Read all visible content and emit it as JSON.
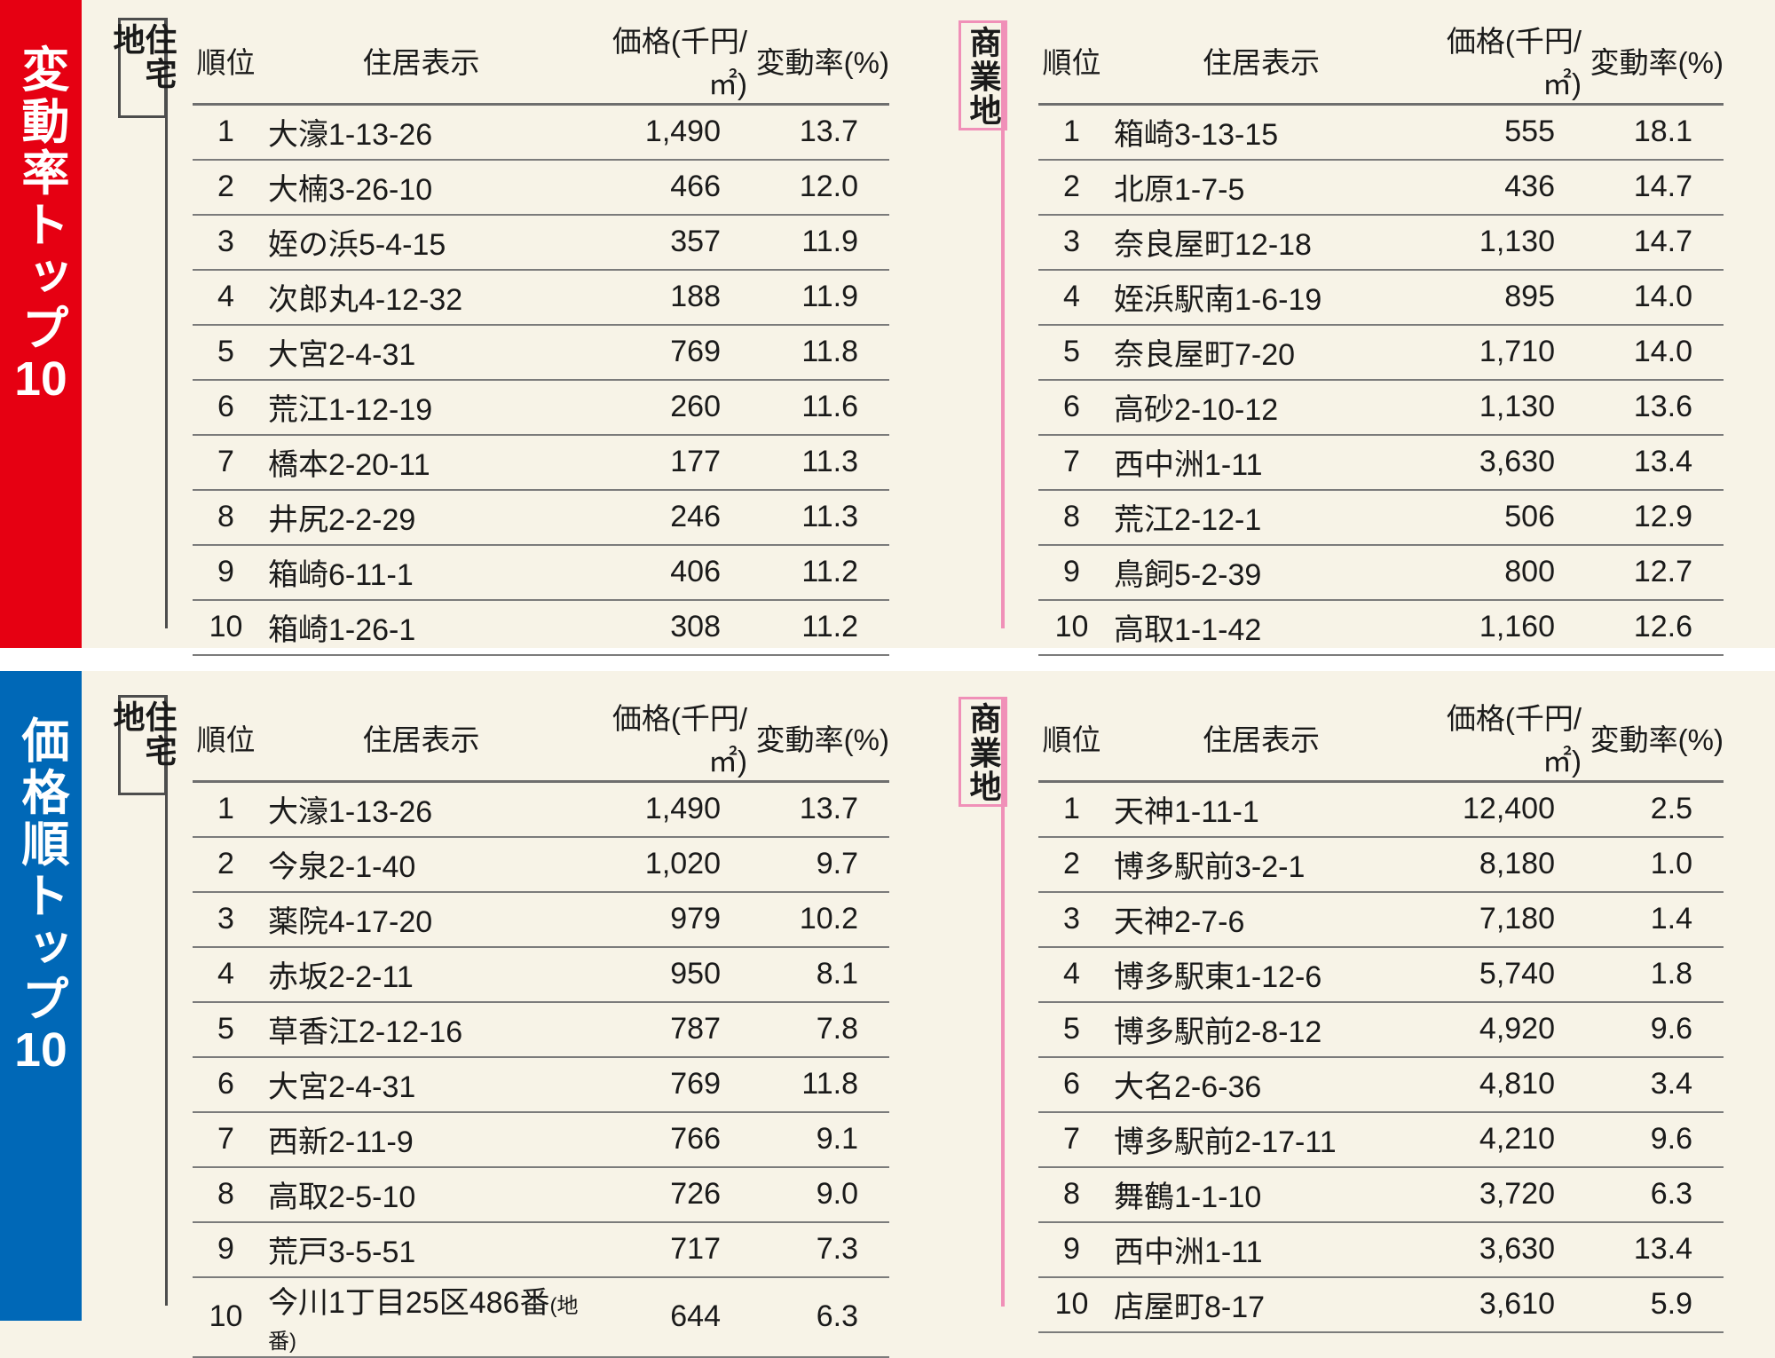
{
  "page": {
    "background": "#f7f3e7",
    "gap_color": "#ffffff",
    "rule_color": "#7b7b7b",
    "text_color": "#1a1a1a"
  },
  "accents": {
    "residential_border": "#4d4d4d",
    "residential_fill": "#ffffff",
    "commercial_border": "#f090b8",
    "commercial_fill": "#fdeef4"
  },
  "columns": {
    "rank": "順位",
    "address": "住居表示",
    "price": "価格(千円/㎡)",
    "rate": "変動率(%)"
  },
  "sections": [
    {
      "banner": {
        "text_main": "変動率トップ",
        "text_num": "10",
        "color": "#e60012"
      },
      "tables": [
        {
          "category": "住宅地",
          "rows": [
            {
              "rank": "1",
              "address": "大濠1-13-26",
              "price": "1,490",
              "rate": "13.7"
            },
            {
              "rank": "2",
              "address": "大楠3-26-10",
              "price": "466",
              "rate": "12.0"
            },
            {
              "rank": "3",
              "address": "姪の浜5-4-15",
              "price": "357",
              "rate": "11.9"
            },
            {
              "rank": "4",
              "address": "次郎丸4-12-32",
              "price": "188",
              "rate": "11.9"
            },
            {
              "rank": "5",
              "address": "大宮2-4-31",
              "price": "769",
              "rate": "11.8"
            },
            {
              "rank": "6",
              "address": "荒江1-12-19",
              "price": "260",
              "rate": "11.6"
            },
            {
              "rank": "7",
              "address": "橋本2-20-11",
              "price": "177",
              "rate": "11.3"
            },
            {
              "rank": "8",
              "address": "井尻2-2-29",
              "price": "246",
              "rate": "11.3"
            },
            {
              "rank": "9",
              "address": "箱崎6-11-1",
              "price": "406",
              "rate": "11.2"
            },
            {
              "rank": "10",
              "address": "箱崎1-26-1",
              "price": "308",
              "rate": "11.2"
            }
          ]
        },
        {
          "category": "商業地",
          "rows": [
            {
              "rank": "1",
              "address": "箱崎3-13-15",
              "price": "555",
              "rate": "18.1"
            },
            {
              "rank": "2",
              "address": "北原1-7-5",
              "price": "436",
              "rate": "14.7"
            },
            {
              "rank": "3",
              "address": "奈良屋町12-18",
              "price": "1,130",
              "rate": "14.7"
            },
            {
              "rank": "4",
              "address": "姪浜駅南1-6-19",
              "price": "895",
              "rate": "14.0"
            },
            {
              "rank": "5",
              "address": "奈良屋町7-20",
              "price": "1,710",
              "rate": "14.0"
            },
            {
              "rank": "6",
              "address": "高砂2-10-12",
              "price": "1,130",
              "rate": "13.6"
            },
            {
              "rank": "7",
              "address": "西中洲1-11",
              "price": "3,630",
              "rate": "13.4"
            },
            {
              "rank": "8",
              "address": "荒江2-12-1",
              "price": "506",
              "rate": "12.9"
            },
            {
              "rank": "9",
              "address": "鳥飼5-2-39",
              "price": "800",
              "rate": "12.7"
            },
            {
              "rank": "10",
              "address": "高取1-1-42",
              "price": "1,160",
              "rate": "12.6"
            }
          ]
        }
      ]
    },
    {
      "banner": {
        "text_main": "価格順トップ",
        "text_num": "10",
        "color": "#0068b7"
      },
      "tables": [
        {
          "category": "住宅地",
          "rows": [
            {
              "rank": "1",
              "address": "大濠1-13-26",
              "price": "1,490",
              "rate": "13.7"
            },
            {
              "rank": "2",
              "address": "今泉2-1-40",
              "price": "1,020",
              "rate": "9.7"
            },
            {
              "rank": "3",
              "address": "薬院4-17-20",
              "price": "979",
              "rate": "10.2"
            },
            {
              "rank": "4",
              "address": "赤坂2-2-11",
              "price": "950",
              "rate": "8.1"
            },
            {
              "rank": "5",
              "address": "草香江2-12-16",
              "price": "787",
              "rate": "7.8"
            },
            {
              "rank": "6",
              "address": "大宮2-4-31",
              "price": "769",
              "rate": "11.8"
            },
            {
              "rank": "7",
              "address": "西新2-11-9",
              "price": "766",
              "rate": "9.1"
            },
            {
              "rank": "8",
              "address": "高取2-5-10",
              "price": "726",
              "rate": "9.0"
            },
            {
              "rank": "9",
              "address": "荒戸3-5-51",
              "price": "717",
              "rate": "7.3"
            },
            {
              "rank": "10",
              "address": "今川1丁目25区486番",
              "note": "(地番)",
              "price": "644",
              "rate": "6.3"
            }
          ]
        },
        {
          "category": "商業地",
          "rows": [
            {
              "rank": "1",
              "address": "天神1-11-1",
              "price": "12,400",
              "rate": "2.5"
            },
            {
              "rank": "2",
              "address": "博多駅前3-2-1",
              "price": "8,180",
              "rate": "1.0"
            },
            {
              "rank": "3",
              "address": "天神2-7-6",
              "price": "7,180",
              "rate": "1.4"
            },
            {
              "rank": "4",
              "address": "博多駅東1-12-6",
              "price": "5,740",
              "rate": "1.8"
            },
            {
              "rank": "5",
              "address": "博多駅前2-8-12",
              "price": "4,920",
              "rate": "9.6"
            },
            {
              "rank": "6",
              "address": "大名2-6-36",
              "price": "4,810",
              "rate": "3.4"
            },
            {
              "rank": "7",
              "address": "博多駅前2-17-11",
              "price": "4,210",
              "rate": "9.6"
            },
            {
              "rank": "8",
              "address": "舞鶴1-1-10",
              "price": "3,720",
              "rate": "6.3"
            },
            {
              "rank": "9",
              "address": "西中洲1-11",
              "price": "3,630",
              "rate": "13.4"
            },
            {
              "rank": "10",
              "address": "店屋町8-17",
              "price": "3,610",
              "rate": "5.9"
            }
          ]
        }
      ]
    }
  ]
}
